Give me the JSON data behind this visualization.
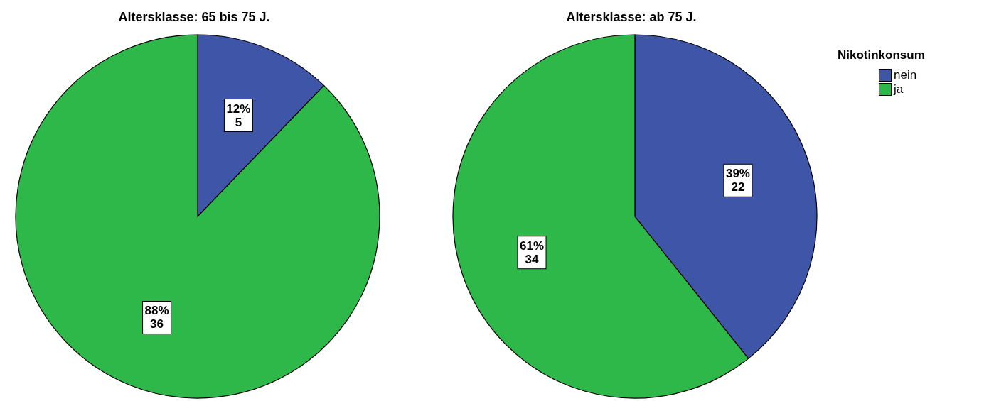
{
  "chart_data": [
    {
      "type": "pie",
      "title": "Altersklasse: 65 bis 75 J.",
      "values": [
        5,
        36
      ],
      "colors": [
        "#3f56a8",
        "#2eb84a"
      ],
      "value_labels": [
        "12%\n5",
        "88%\n36"
      ]
    },
    {
      "type": "pie",
      "title": "Altersklasse: ab 75 J.",
      "categories": [
        "nein",
        "ja"
      ],
      "values": [
        22,
        34
      ],
      "colors": [
        "#3f56a8",
        "#2eb84a"
      ],
      "value_labels": [
        "39%\n22",
        "61%\n34"
      ],
      "legend": "right",
      "legend_title": "Nikotinkonsum"
    }
  ]
}
